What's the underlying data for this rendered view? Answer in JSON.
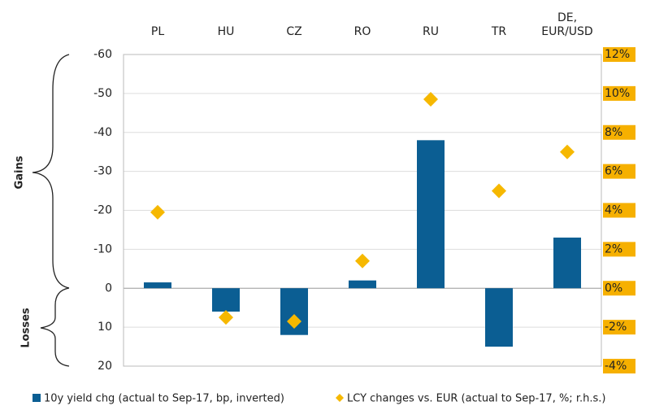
{
  "chart_data": {
    "type": "bar_line",
    "categories": [
      "PL",
      "HU",
      "CZ",
      "RO",
      "RU",
      "TR",
      "DE, EUR/USD"
    ],
    "series": [
      {
        "name": "10y yield chg (actual to Sep-17, bp, inverted)",
        "color": "#0b5e93",
        "type": "bar",
        "values": [
          -1.5,
          6,
          12,
          -2,
          -38,
          15,
          -13
        ]
      },
      {
        "name": "LCY changes vs. EUR (actual to Sep-17, %; r.h.s.)",
        "color": "#f6b800",
        "type": "diamond",
        "axis": "y2",
        "values": [
          3.9,
          -1.5,
          -1.7,
          1.4,
          9.7,
          5.0,
          7.0
        ]
      }
    ],
    "ylim": [
      -60,
      20
    ],
    "y_inverted": true,
    "yticks": [
      -60,
      -50,
      -40,
      -30,
      -20,
      -10,
      0,
      10,
      20
    ],
    "y2lim": [
      -4,
      12
    ],
    "y2ticks": [
      {
        "value": 12,
        "label": "12%"
      },
      {
        "value": 10,
        "label": "10%"
      },
      {
        "value": 8,
        "label": "8%"
      },
      {
        "value": 6,
        "label": "6%"
      },
      {
        "value": 4,
        "label": "4%"
      },
      {
        "value": 2,
        "label": "2%"
      },
      {
        "value": 0,
        "label": "0%"
      },
      {
        "value": -2,
        "label": "-2%"
      },
      {
        "value": -4,
        "label": "-4%"
      }
    ],
    "y2_label_color": "#f6b000",
    "grid": true,
    "annotations": [
      "Gains",
      "Losses"
    ]
  }
}
